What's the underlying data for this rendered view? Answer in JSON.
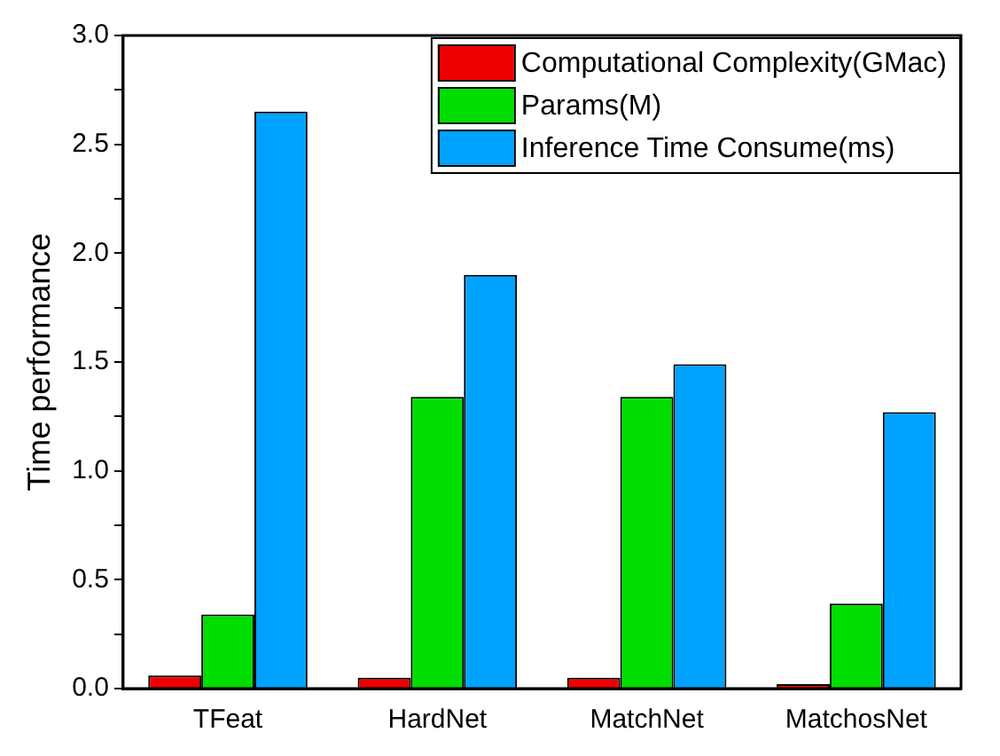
{
  "chart_data": {
    "type": "bar",
    "ylabel": "Time performance",
    "categories": [
      "TFeat",
      "HardNet",
      "MatchNet",
      "MatchosNet"
    ],
    "series": [
      {
        "name": "Computational Complexity(GMac)",
        "color": "#ee0000",
        "values": [
          0.06,
          0.05,
          0.05,
          0.02
        ]
      },
      {
        "name": "Params(M)",
        "color": "#00dd00",
        "values": [
          0.34,
          1.34,
          1.34,
          0.39
        ]
      },
      {
        "name": "Inference Time Consume(ms)",
        "color": "#00a2ff",
        "values": [
          2.65,
          1.9,
          1.49,
          1.27
        ]
      }
    ],
    "ylim": [
      0,
      3
    ],
    "yticks": [
      {
        "value": 0,
        "label": "0.0"
      },
      {
        "value": 0.25,
        "label": null
      },
      0.5,
      {
        "value": 0.75,
        "label": null
      },
      {
        "value": 1,
        "label": "1.0"
      },
      {
        "value": 1.25,
        "label": null
      },
      1.5,
      {
        "value": 1.75,
        "label": null
      },
      {
        "value": 2,
        "label": "2.0"
      },
      {
        "value": 2.25,
        "label": null
      },
      2.5,
      {
        "value": 2.75,
        "label": null
      },
      {
        "value": 3,
        "label": "3.0"
      }
    ],
    "grid": false,
    "legend": "top right"
  }
}
